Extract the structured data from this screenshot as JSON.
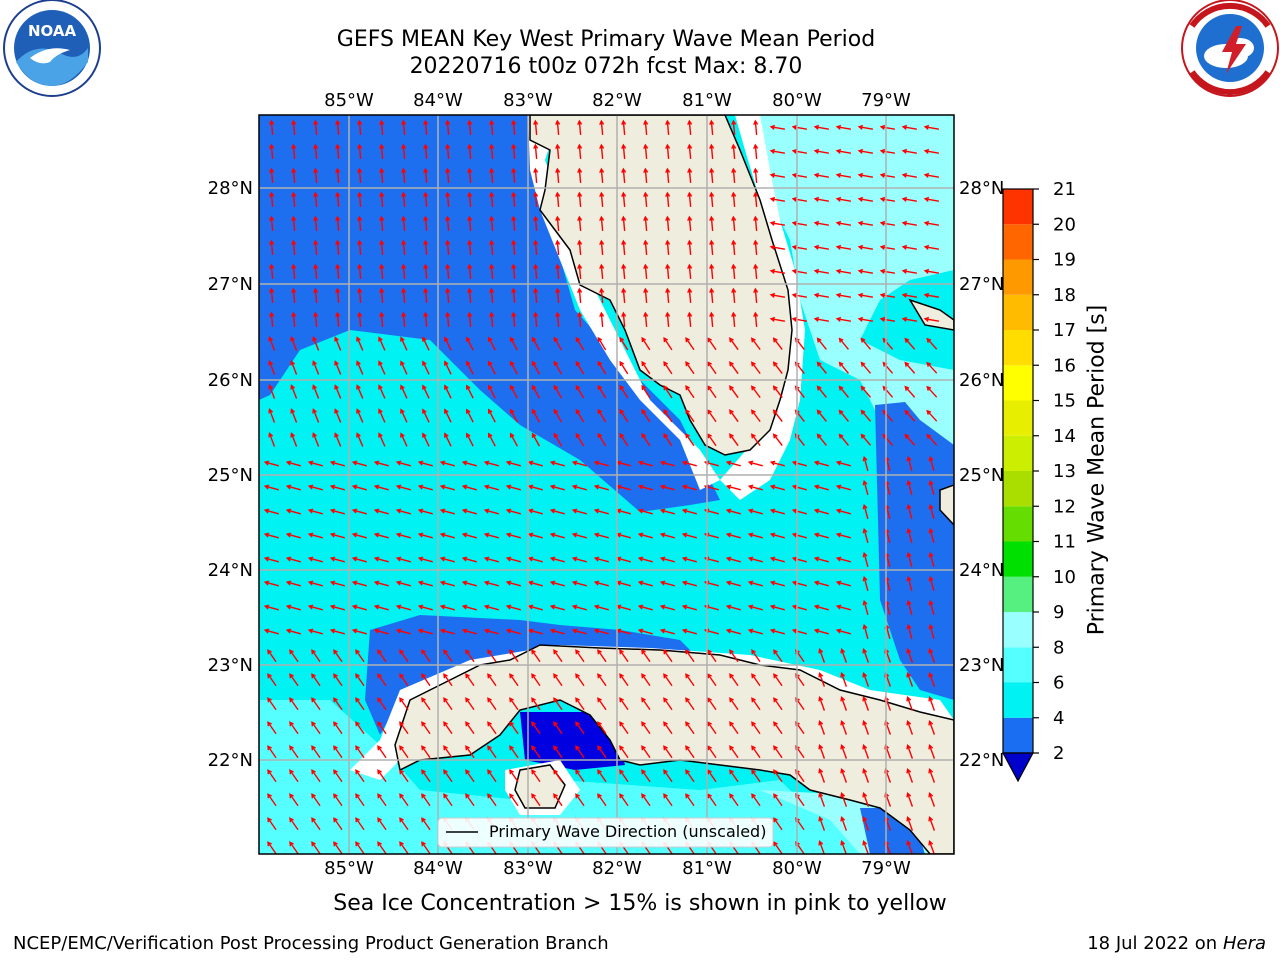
{
  "title": {
    "line1": "GEFS MEAN Key West Primary Wave Mean Period",
    "line2": "20220716 t00z 072h fcst   Max: 8.70"
  },
  "logos": {
    "left": {
      "text": "NOAA",
      "ring_text": "NATIONAL OCEANIC AND ATMOSPHERIC ADMINISTRATION · U.S. DEPARTMENT OF COMMERCE"
    },
    "right": {
      "ring_text": "NATIONAL WEATHER SERVICE"
    }
  },
  "map": {
    "lon_labels": [
      "85°W",
      "84°W",
      "83°W",
      "82°W",
      "81°W",
      "80°W",
      "79°W"
    ],
    "lat_labels": [
      "28°N",
      "27°N",
      "26°N",
      "25°N",
      "24°N",
      "23°N",
      "22°N"
    ],
    "legend_label": "Primary Wave Direction (unscaled)",
    "colors": {
      "ocean_deep": "#1e6ff0",
      "ocean_mid": "#00f2f2",
      "ocean_light": "#99ffff",
      "land": "#efedde",
      "arrows": "#ff0000",
      "gridlines": "#b0b0b0"
    }
  },
  "colorbar": {
    "label": "Primary Wave Mean Period [s]",
    "ticks": [
      "2",
      "4",
      "6",
      "8",
      "9",
      "10",
      "11",
      "12",
      "13",
      "14",
      "15",
      "16",
      "17",
      "18",
      "19",
      "20",
      "21"
    ],
    "colors": [
      "#1a6ef2",
      "#00f2f2",
      "#55ffff",
      "#99ffff",
      "#55f080",
      "#00e000",
      "#66dd00",
      "#aadd00",
      "#ccee00",
      "#e8ee00",
      "#ffff00",
      "#ffdd00",
      "#ffbb00",
      "#ff9900",
      "#ff6600",
      "#ff3300",
      "#ff0000"
    ],
    "extend_color": "#0000cc"
  },
  "caption": "Sea Ice Concentration > 15% is shown in pink to yellow",
  "footer": {
    "left": "NCEP/EMC/Verification Post Processing Product Generation Branch",
    "right_prefix": "18 Jul 2022 on ",
    "right_italic": "Hera"
  }
}
